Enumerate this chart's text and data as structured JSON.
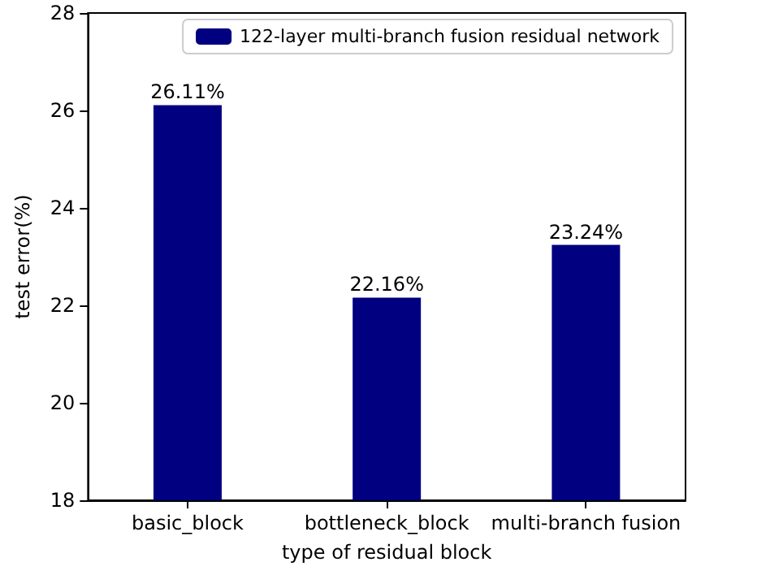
{
  "chart_data": {
    "type": "bar",
    "xlabel": "type of residual block",
    "ylabel": "test error(%)",
    "categories": [
      "basic_block",
      "bottleneck_block",
      "multi-branch fusion"
    ],
    "series": [
      {
        "name": "122-layer multi-branch fusion residual network",
        "color": "#000080",
        "values": [
          26.11,
          22.16,
          23.24
        ],
        "value_labels": [
          "26.11%",
          "22.16%",
          "23.24%"
        ]
      }
    ],
    "ylim": [
      18,
      28
    ],
    "yticks": [
      18,
      20,
      22,
      24,
      26,
      28
    ],
    "grid": false,
    "legend": "top right"
  }
}
